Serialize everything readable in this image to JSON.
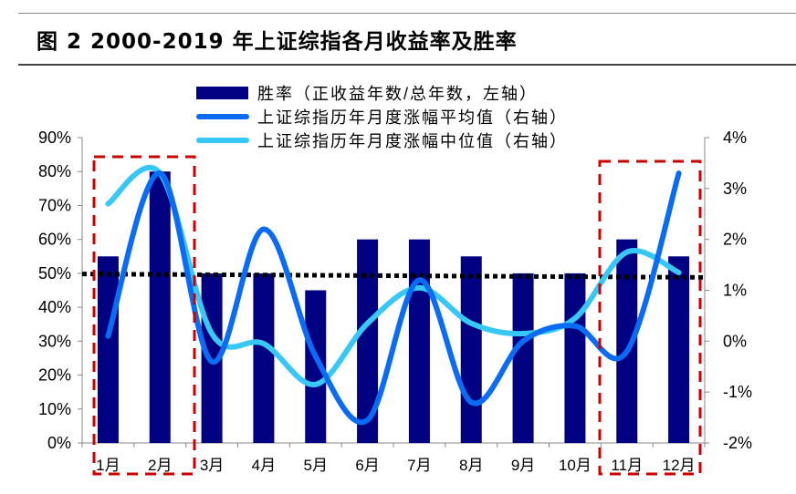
{
  "title": "图 2  2000-2019 年上证综指各月收益率及胜率",
  "chart_data": {
    "type": "bar+line",
    "categories": [
      "1月",
      "2月",
      "3月",
      "4月",
      "5月",
      "6月",
      "7月",
      "8月",
      "9月",
      "10月",
      "11月",
      "12月"
    ],
    "series": [
      {
        "name": "胜率（正收益年数/总年数，左轴）",
        "type": "bar",
        "axis": "left",
        "color": "#000080",
        "values": [
          55,
          80,
          50,
          50,
          45,
          60,
          60,
          55,
          50,
          50,
          60,
          55
        ]
      },
      {
        "name": "上证综指历年月度涨幅平均值（右轴）",
        "type": "line",
        "axis": "right",
        "color": "#0a6cf5",
        "values": [
          0.1,
          3.3,
          -0.4,
          2.2,
          -0.3,
          -1.55,
          1.2,
          -1.2,
          0.0,
          0.3,
          -0.2,
          3.3
        ]
      },
      {
        "name": "上证综指历年月度涨幅中位值（右轴）",
        "type": "line",
        "axis": "right",
        "color": "#38c8f8",
        "values": [
          2.7,
          3.3,
          0.15,
          -0.05,
          -0.85,
          0.35,
          1.05,
          0.35,
          0.15,
          0.45,
          1.75,
          1.35
        ]
      }
    ],
    "trend_line": {
      "axis": "left",
      "values": [
        49.8,
        48.8
      ],
      "style": "dotted",
      "color": "#000000"
    },
    "left_axis": {
      "ylim": [
        0,
        90
      ],
      "ticks": [
        "0%",
        "10%",
        "20%",
        "30%",
        "40%",
        "50%",
        "60%",
        "70%",
        "80%",
        "90%"
      ]
    },
    "right_axis": {
      "ylim": [
        -2,
        4
      ],
      "ticks": [
        "-2%",
        "-1%",
        "0%",
        "1%",
        "2%",
        "3%",
        "4%"
      ]
    },
    "highlight_boxes": [
      {
        "months": [
          "1月",
          "2月"
        ]
      },
      {
        "months": [
          "11月",
          "12月"
        ]
      }
    ],
    "highlight_color": "#cc0000",
    "legend_placement": "top"
  }
}
